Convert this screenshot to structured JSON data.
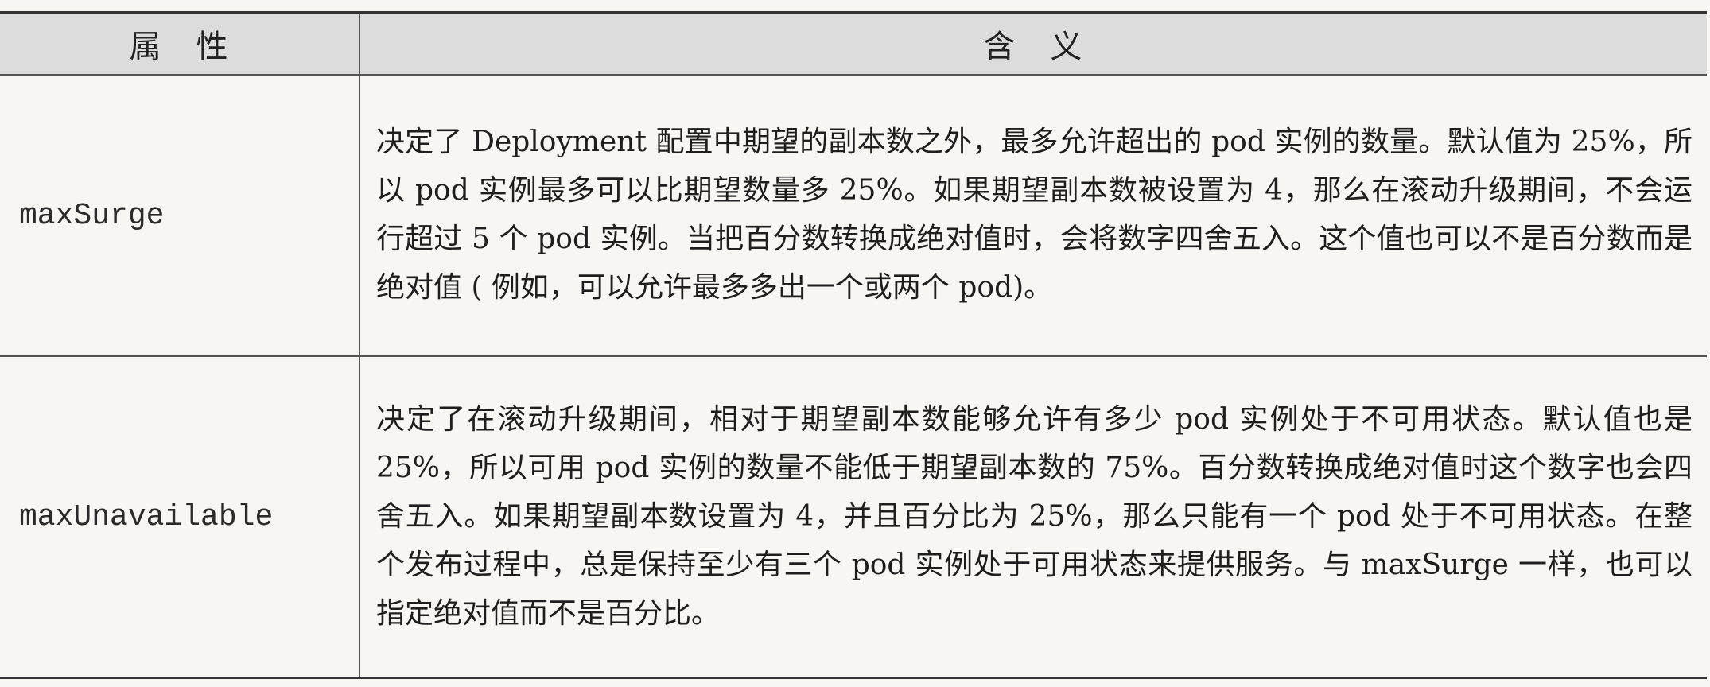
{
  "table": {
    "headers": {
      "attribute": "属　性",
      "meaning": "含　义"
    },
    "rows": [
      {
        "name": "maxSurge",
        "description": "决定了 Deployment 配置中期望的副本数之外，最多允许超出的 pod 实例的数量。默认值为 25%，所以 pod 实例最多可以比期望数量多 25%。如果期望副本数被设置为 4，那么在滚动升级期间，不会运行超过 5 个 pod 实例。当把百分数转换成绝对值时，会将数字四舍五入。这个值也可以不是百分数而是绝对值 ( 例如，可以允许最多多出一个或两个 pod)。"
      },
      {
        "name": "maxUnavailable",
        "description": "决定了在滚动升级期间，相对于期望副本数能够允许有多少 pod 实例处于不可用状态。默认值也是 25%，所以可用 pod 实例的数量不能低于期望副本数的 75%。百分数转换成绝对值时这个数字也会四舍五入。如果期望副本数设置为 4，并且百分比为 25%，那么只能有一个 pod 处于不可用状态。在整个发布过程中，总是保持至少有三个 pod 实例处于可用状态来提供服务。与 maxSurge 一样，也可以指定绝对值而不是百分比。"
      }
    ]
  }
}
